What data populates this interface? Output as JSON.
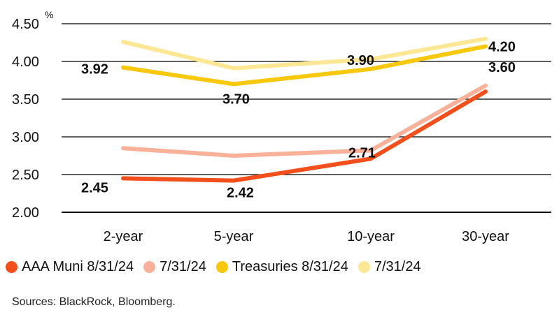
{
  "chart_data": {
    "type": "line",
    "title": "",
    "xlabel": "",
    "ylabel": "",
    "y_unit": "%",
    "categories": [
      "2-year",
      "5-year",
      "10-year",
      "30-year"
    ],
    "ylim": [
      2.0,
      4.5
    ],
    "yticks": [
      "2.00",
      "2.50",
      "3.00",
      "3.50",
      "4.00",
      "4.50"
    ],
    "grid": true,
    "legend_position": "bottom",
    "series": [
      {
        "name": "AAA Muni 8/31/24",
        "color": "#f34f1c",
        "values": [
          2.45,
          2.42,
          2.71,
          3.6
        ],
        "labels": [
          "2.45",
          "2.42",
          "2.71",
          "3.60"
        ]
      },
      {
        "name": "7/31/24",
        "color": "#f9b19a",
        "values": [
          2.85,
          2.75,
          2.82,
          3.68
        ],
        "labels": []
      },
      {
        "name": "Treasuries 8/31/24",
        "color": "#f8c80c",
        "values": [
          3.92,
          3.7,
          3.9,
          4.2
        ],
        "labels": [
          "3.92",
          "3.70",
          "3.90",
          "4.20"
        ]
      },
      {
        "name": "7/31/24",
        "color": "#fce894",
        "values": [
          4.26,
          3.91,
          4.03,
          4.3
        ],
        "labels": []
      }
    ]
  },
  "legend": {
    "items": [
      {
        "label": "AAA Muni 8/31/24",
        "color": "#f34f1c"
      },
      {
        "label": "7/31/24",
        "color": "#f9b19a"
      },
      {
        "label": "Treasuries 8/31/24",
        "color": "#f8c80c"
      },
      {
        "label": "7/31/24",
        "color": "#fce894"
      }
    ]
  },
  "footer": {
    "source": "Sources: BlackRock, Bloomberg."
  }
}
